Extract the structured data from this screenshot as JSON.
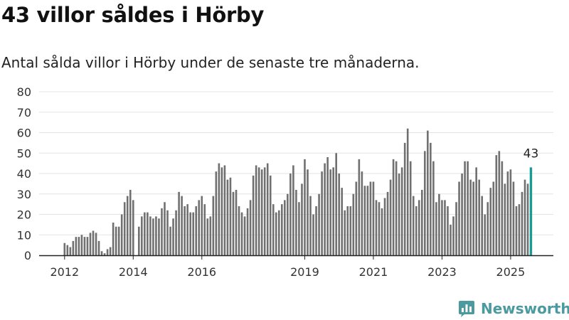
{
  "header": {
    "title": "43 villor såldes i Hörby",
    "subtitle": "Antal sålda villor i Hörby under de senaste tre månaderna."
  },
  "brand": {
    "name": "Newsworthy",
    "logo_icon": "newsworthy-logo-icon"
  },
  "colors": {
    "bar": "#707070",
    "highlight": "#1a9a95",
    "grid": "#e3e3e3",
    "axis": "#222222"
  },
  "chart_data": {
    "type": "bar",
    "title": "",
    "xlabel": "",
    "ylabel": "",
    "ylim": [
      0,
      80
    ],
    "yticks": [
      "0",
      "10",
      "20",
      "30",
      "40",
      "50",
      "60",
      "70",
      "80"
    ],
    "xticks": [
      {
        "label": "2012",
        "at": "2012-01"
      },
      {
        "label": "2014",
        "at": "2014-01"
      },
      {
        "label": "2016",
        "at": "2016-01"
      },
      {
        "label": "2019",
        "at": "2019-01"
      },
      {
        "label": "2021",
        "at": "2021-01"
      },
      {
        "label": "2023",
        "at": "2023-01"
      },
      {
        "label": "2025",
        "at": "2025-01"
      }
    ],
    "grid": true,
    "start_month": "2012-01",
    "values": [
      6,
      5,
      4,
      7,
      9,
      9,
      10,
      9,
      9,
      11,
      12,
      11,
      7,
      2,
      1,
      3,
      4,
      16,
      14,
      14,
      20,
      26,
      29,
      32,
      27,
      0,
      14,
      19,
      21,
      21,
      19,
      18,
      19,
      18,
      23,
      26,
      22,
      14,
      18,
      22,
      31,
      29,
      24,
      25,
      21,
      21,
      24,
      27,
      29,
      25,
      18,
      19,
      29,
      41,
      45,
      43,
      44,
      37,
      38,
      31,
      32,
      24,
      21,
      19,
      23,
      27,
      39,
      44,
      43,
      42,
      43,
      45,
      39,
      25,
      21,
      22,
      25,
      27,
      30,
      40,
      44,
      32,
      26,
      35,
      47,
      42,
      29,
      20,
      24,
      30,
      41,
      45,
      48,
      42,
      43,
      50,
      40,
      33,
      22,
      24,
      24,
      30,
      36,
      47,
      41,
      34,
      34,
      36,
      36,
      27,
      26,
      23,
      28,
      31,
      37,
      47,
      46,
      40,
      43,
      55,
      62,
      46,
      29,
      24,
      27,
      32,
      51,
      61,
      55,
      46,
      26,
      30,
      27,
      27,
      24,
      15,
      19,
      26,
      36,
      40,
      46,
      46,
      37,
      36,
      43,
      37,
      29,
      20,
      26,
      33,
      36,
      49,
      51,
      46,
      35,
      41,
      42,
      36,
      24,
      25,
      31,
      37,
      35,
      43
    ],
    "highlight_label": "43"
  }
}
